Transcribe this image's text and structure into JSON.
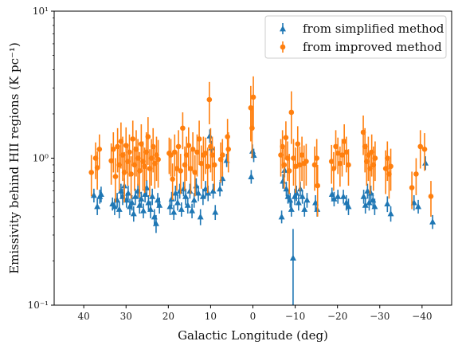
{
  "chart_data": {
    "type": "scatter",
    "xlabel": "Galactic Longitude (deg)",
    "ylabel": "Emissivity behind HII regions (K pc⁻¹)",
    "xlim": [
      47,
      -47
    ],
    "ylim": [
      0.1,
      10
    ],
    "yscale": "log",
    "xticks": [
      40,
      30,
      20,
      10,
      0,
      -10,
      -20,
      -30,
      -40
    ],
    "xtick_labels": [
      "40",
      "30",
      "20",
      "10",
      "0",
      "−10",
      "−20",
      "−30",
      "−40"
    ],
    "yticks": [
      0.1,
      1,
      10
    ],
    "ytick_labels": [
      "10⁻¹",
      "10⁰",
      "10¹"
    ],
    "grid": false,
    "legend_position": "top-right",
    "series": [
      {
        "name": "from simplified method",
        "marker": "triangle",
        "color": "#1f77b4",
        "points": [
          [
            37.6,
            0.56,
            0.06
          ],
          [
            36.8,
            0.47,
            0.06
          ],
          [
            36.2,
            0.55,
            0.06
          ],
          [
            35.9,
            0.57,
            0.07
          ],
          [
            33.2,
            0.49,
            0.05
          ],
          [
            32.7,
            0.47,
            0.06
          ],
          [
            32.1,
            0.52,
            0.06
          ],
          [
            31.6,
            0.45,
            0.06
          ],
          [
            31.2,
            0.6,
            0.07
          ],
          [
            30.8,
            0.55,
            0.07
          ],
          [
            30.4,
            0.65,
            0.08
          ],
          [
            29.9,
            0.52,
            0.06
          ],
          [
            29.5,
            0.58,
            0.07
          ],
          [
            29.1,
            0.47,
            0.06
          ],
          [
            28.6,
            0.5,
            0.06
          ],
          [
            28.2,
            0.42,
            0.05
          ],
          [
            27.8,
            0.55,
            0.07
          ],
          [
            27.2,
            0.6,
            0.07
          ],
          [
            26.8,
            0.48,
            0.06
          ],
          [
            26.4,
            0.53,
            0.06
          ],
          [
            25.9,
            0.44,
            0.05
          ],
          [
            25.5,
            0.57,
            0.07
          ],
          [
            25.1,
            0.63,
            0.08
          ],
          [
            24.7,
            0.5,
            0.06
          ],
          [
            24.2,
            0.45,
            0.06
          ],
          [
            23.8,
            0.55,
            0.07
          ],
          [
            23.3,
            0.4,
            0.05
          ],
          [
            22.9,
            0.36,
            0.05
          ],
          [
            22.5,
            0.52,
            0.06
          ],
          [
            22.1,
            0.48,
            0.06
          ],
          [
            19.6,
            0.47,
            0.06
          ],
          [
            19.2,
            0.53,
            0.06
          ],
          [
            18.7,
            0.43,
            0.05
          ],
          [
            18.3,
            0.58,
            0.07
          ],
          [
            17.8,
            0.5,
            0.06
          ],
          [
            17.3,
            0.6,
            0.07
          ],
          [
            16.9,
            0.45,
            0.05
          ],
          [
            16.4,
            0.62,
            0.07
          ],
          [
            15.9,
            0.55,
            0.07
          ],
          [
            15.4,
            0.48,
            0.06
          ],
          [
            14.9,
            0.6,
            0.07
          ],
          [
            14.4,
            0.44,
            0.05
          ],
          [
            13.9,
            0.52,
            0.06
          ],
          [
            13.4,
            0.65,
            0.08
          ],
          [
            12.9,
            0.58,
            0.07
          ],
          [
            12.4,
            0.4,
            0.05
          ],
          [
            11.8,
            0.55,
            0.07
          ],
          [
            11.2,
            0.62,
            0.08
          ],
          [
            10.6,
            0.58,
            0.07
          ],
          [
            10.2,
            1.42,
            0.15
          ],
          [
            9.8,
            1.18,
            0.13
          ],
          [
            9.4,
            0.6,
            0.07
          ],
          [
            8.9,
            0.43,
            0.05
          ],
          [
            7.8,
            0.62,
            0.07
          ],
          [
            7.2,
            0.73,
            0.08
          ],
          [
            6.2,
            0.97,
            0.1
          ],
          [
            0.4,
            0.75,
            0.08
          ],
          [
            0.1,
            1.12,
            0.12
          ],
          [
            -0.2,
            1.05,
            0.11
          ],
          [
            -6.8,
            0.4,
            0.04
          ],
          [
            -7.1,
            0.7,
            0.08
          ],
          [
            -7.5,
            0.83,
            0.09
          ],
          [
            -7.9,
            0.62,
            0.07
          ],
          [
            -8.3,
            0.55,
            0.06
          ],
          [
            -8.8,
            0.52,
            0.06
          ],
          [
            -9.1,
            0.45,
            0.05
          ],
          [
            -9.5,
            0.21,
            0.12
          ],
          [
            -9.9,
            0.55,
            0.07
          ],
          [
            -10.3,
            0.58,
            0.07
          ],
          [
            -10.8,
            0.5,
            0.06
          ],
          [
            -11.2,
            0.62,
            0.07
          ],
          [
            -11.7,
            0.55,
            0.06
          ],
          [
            -12.2,
            0.45,
            0.05
          ],
          [
            -12.8,
            0.52,
            0.06
          ],
          [
            -14.8,
            0.5,
            0.06
          ],
          [
            -15.2,
            0.45,
            0.05
          ],
          [
            -18.7,
            0.57,
            0.06
          ],
          [
            -19.2,
            0.53,
            0.06
          ],
          [
            -20.1,
            0.55,
            0.06
          ],
          [
            -21.4,
            0.55,
            0.06
          ],
          [
            -22.1,
            0.5,
            0.06
          ],
          [
            -22.6,
            0.47,
            0.06
          ],
          [
            -26.2,
            0.55,
            0.06
          ],
          [
            -26.6,
            0.48,
            0.06
          ],
          [
            -27.1,
            0.6,
            0.07
          ],
          [
            -27.5,
            0.5,
            0.06
          ],
          [
            -27.9,
            0.58,
            0.07
          ],
          [
            -28.4,
            0.52,
            0.06
          ],
          [
            -28.8,
            0.47,
            0.06
          ],
          [
            -31.8,
            0.49,
            0.06
          ],
          [
            -32.6,
            0.42,
            0.05
          ],
          [
            -38.1,
            0.5,
            0.06
          ],
          [
            -39.1,
            0.47,
            0.05
          ],
          [
            -40.8,
            0.93,
            0.1
          ],
          [
            -42.5,
            0.37,
            0.04
          ]
        ]
      },
      {
        "name": "from improved method",
        "marker": "circle",
        "color": "#ff7f0e",
        "points": [
          [
            38.2,
            0.8,
            0.25
          ],
          [
            37.2,
            1.0,
            0.28
          ],
          [
            36.8,
            0.86,
            0.25
          ],
          [
            36.3,
            1.15,
            0.3
          ],
          [
            33.5,
            0.96,
            0.3
          ],
          [
            33.0,
            1.15,
            0.35
          ],
          [
            32.5,
            0.75,
            0.25
          ],
          [
            32.0,
            1.2,
            0.4
          ],
          [
            31.6,
            0.9,
            0.3
          ],
          [
            31.2,
            1.3,
            0.45
          ],
          [
            30.8,
            1.05,
            0.35
          ],
          [
            30.4,
            0.8,
            0.3
          ],
          [
            30.0,
            1.22,
            0.4
          ],
          [
            29.6,
            0.95,
            0.3
          ],
          [
            29.2,
            1.1,
            0.35
          ],
          [
            28.8,
            0.78,
            0.25
          ],
          [
            28.4,
            1.35,
            0.45
          ],
          [
            28.0,
            0.9,
            0.3
          ],
          [
            27.6,
            1.15,
            0.4
          ],
          [
            27.2,
            1.0,
            0.35
          ],
          [
            26.8,
            0.82,
            0.28
          ],
          [
            26.4,
            1.25,
            0.45
          ],
          [
            26.0,
            0.95,
            0.35
          ],
          [
            25.6,
            0.88,
            0.3
          ],
          [
            25.2,
            1.1,
            0.4
          ],
          [
            24.8,
            1.4,
            0.5
          ],
          [
            24.4,
            0.85,
            0.3
          ],
          [
            24.0,
            1.0,
            0.35
          ],
          [
            23.6,
            1.2,
            0.4
          ],
          [
            23.2,
            0.92,
            0.3
          ],
          [
            22.8,
            1.05,
            0.35
          ],
          [
            22.4,
            0.98,
            0.35
          ],
          [
            19.8,
            1.08,
            0.3
          ],
          [
            19.4,
            1.05,
            0.3
          ],
          [
            19.0,
            0.72,
            0.2
          ],
          [
            18.5,
            1.1,
            0.35
          ],
          [
            18.0,
            0.85,
            0.25
          ],
          [
            17.6,
            1.2,
            0.35
          ],
          [
            17.1,
            0.82,
            0.25
          ],
          [
            16.6,
            1.6,
            0.45
          ],
          [
            16.1,
            0.9,
            0.3
          ],
          [
            15.7,
            1.05,
            0.35
          ],
          [
            15.2,
            1.22,
            0.4
          ],
          [
            14.7,
            0.85,
            0.28
          ],
          [
            14.2,
            1.15,
            0.35
          ],
          [
            13.7,
            0.8,
            0.25
          ],
          [
            13.2,
            1.1,
            0.35
          ],
          [
            12.7,
            1.35,
            0.45
          ],
          [
            12.2,
            0.92,
            0.3
          ],
          [
            11.7,
            1.05,
            0.35
          ],
          [
            11.2,
            1.08,
            0.3
          ],
          [
            10.7,
            0.88,
            0.3
          ],
          [
            10.3,
            2.5,
            0.8
          ],
          [
            10.0,
            1.2,
            0.4
          ],
          [
            9.6,
            1.05,
            0.35
          ],
          [
            9.1,
            0.9,
            0.3
          ],
          [
            7.6,
            0.98,
            0.3
          ],
          [
            7.2,
            1.05,
            0.3
          ],
          [
            6.0,
            1.4,
            0.45
          ],
          [
            5.8,
            1.15,
            0.35
          ],
          [
            0.5,
            2.2,
            0.9
          ],
          [
            0.2,
            1.6,
            0.6
          ],
          [
            -0.1,
            2.6,
            1.0
          ],
          [
            -6.6,
            1.05,
            0.3
          ],
          [
            -7.0,
            1.2,
            0.35
          ],
          [
            -7.4,
            0.9,
            0.28
          ],
          [
            -7.8,
            1.38,
            0.4
          ],
          [
            -8.2,
            1.0,
            0.3
          ],
          [
            -8.6,
            0.82,
            0.25
          ],
          [
            -9.1,
            2.05,
            0.8
          ],
          [
            -9.6,
            1.0,
            0.35
          ],
          [
            -10.1,
            0.88,
            0.3
          ],
          [
            -10.6,
            1.25,
            0.4
          ],
          [
            -11.1,
            0.9,
            0.3
          ],
          [
            -11.6,
            1.05,
            0.35
          ],
          [
            -12.1,
            0.92,
            0.3
          ],
          [
            -12.6,
            0.95,
            0.3
          ],
          [
            -14.6,
            0.9,
            0.3
          ],
          [
            -15.1,
            1.0,
            0.35
          ],
          [
            -15.3,
            0.65,
            0.25
          ],
          [
            -18.6,
            0.95,
            0.28
          ],
          [
            -19.1,
            0.85,
            0.25
          ],
          [
            -19.6,
            1.2,
            0.35
          ],
          [
            -20.1,
            1.08,
            0.3
          ],
          [
            -20.6,
            0.92,
            0.28
          ],
          [
            -21.1,
            1.05,
            0.3
          ],
          [
            -21.6,
            1.3,
            0.4
          ],
          [
            -22.1,
            1.1,
            0.3
          ],
          [
            -22.6,
            0.9,
            0.25
          ],
          [
            -26.1,
            1.5,
            0.45
          ],
          [
            -26.5,
            1.2,
            0.4
          ],
          [
            -26.9,
            0.95,
            0.3
          ],
          [
            -27.3,
            1.05,
            0.35
          ],
          [
            -27.7,
            0.85,
            0.28
          ],
          [
            -28.1,
            1.1,
            0.35
          ],
          [
            -28.5,
            0.9,
            0.3
          ],
          [
            -28.9,
            1.0,
            0.3
          ],
          [
            -31.4,
            0.85,
            0.28
          ],
          [
            -31.8,
            1.0,
            0.3
          ],
          [
            -32.2,
            0.78,
            0.25
          ],
          [
            -32.6,
            0.88,
            0.28
          ],
          [
            -37.6,
            0.63,
            0.18
          ],
          [
            -38.6,
            0.78,
            0.22
          ],
          [
            -39.6,
            1.2,
            0.35
          ],
          [
            -40.6,
            1.15,
            0.33
          ],
          [
            -42.1,
            0.55,
            0.15
          ]
        ]
      }
    ]
  }
}
